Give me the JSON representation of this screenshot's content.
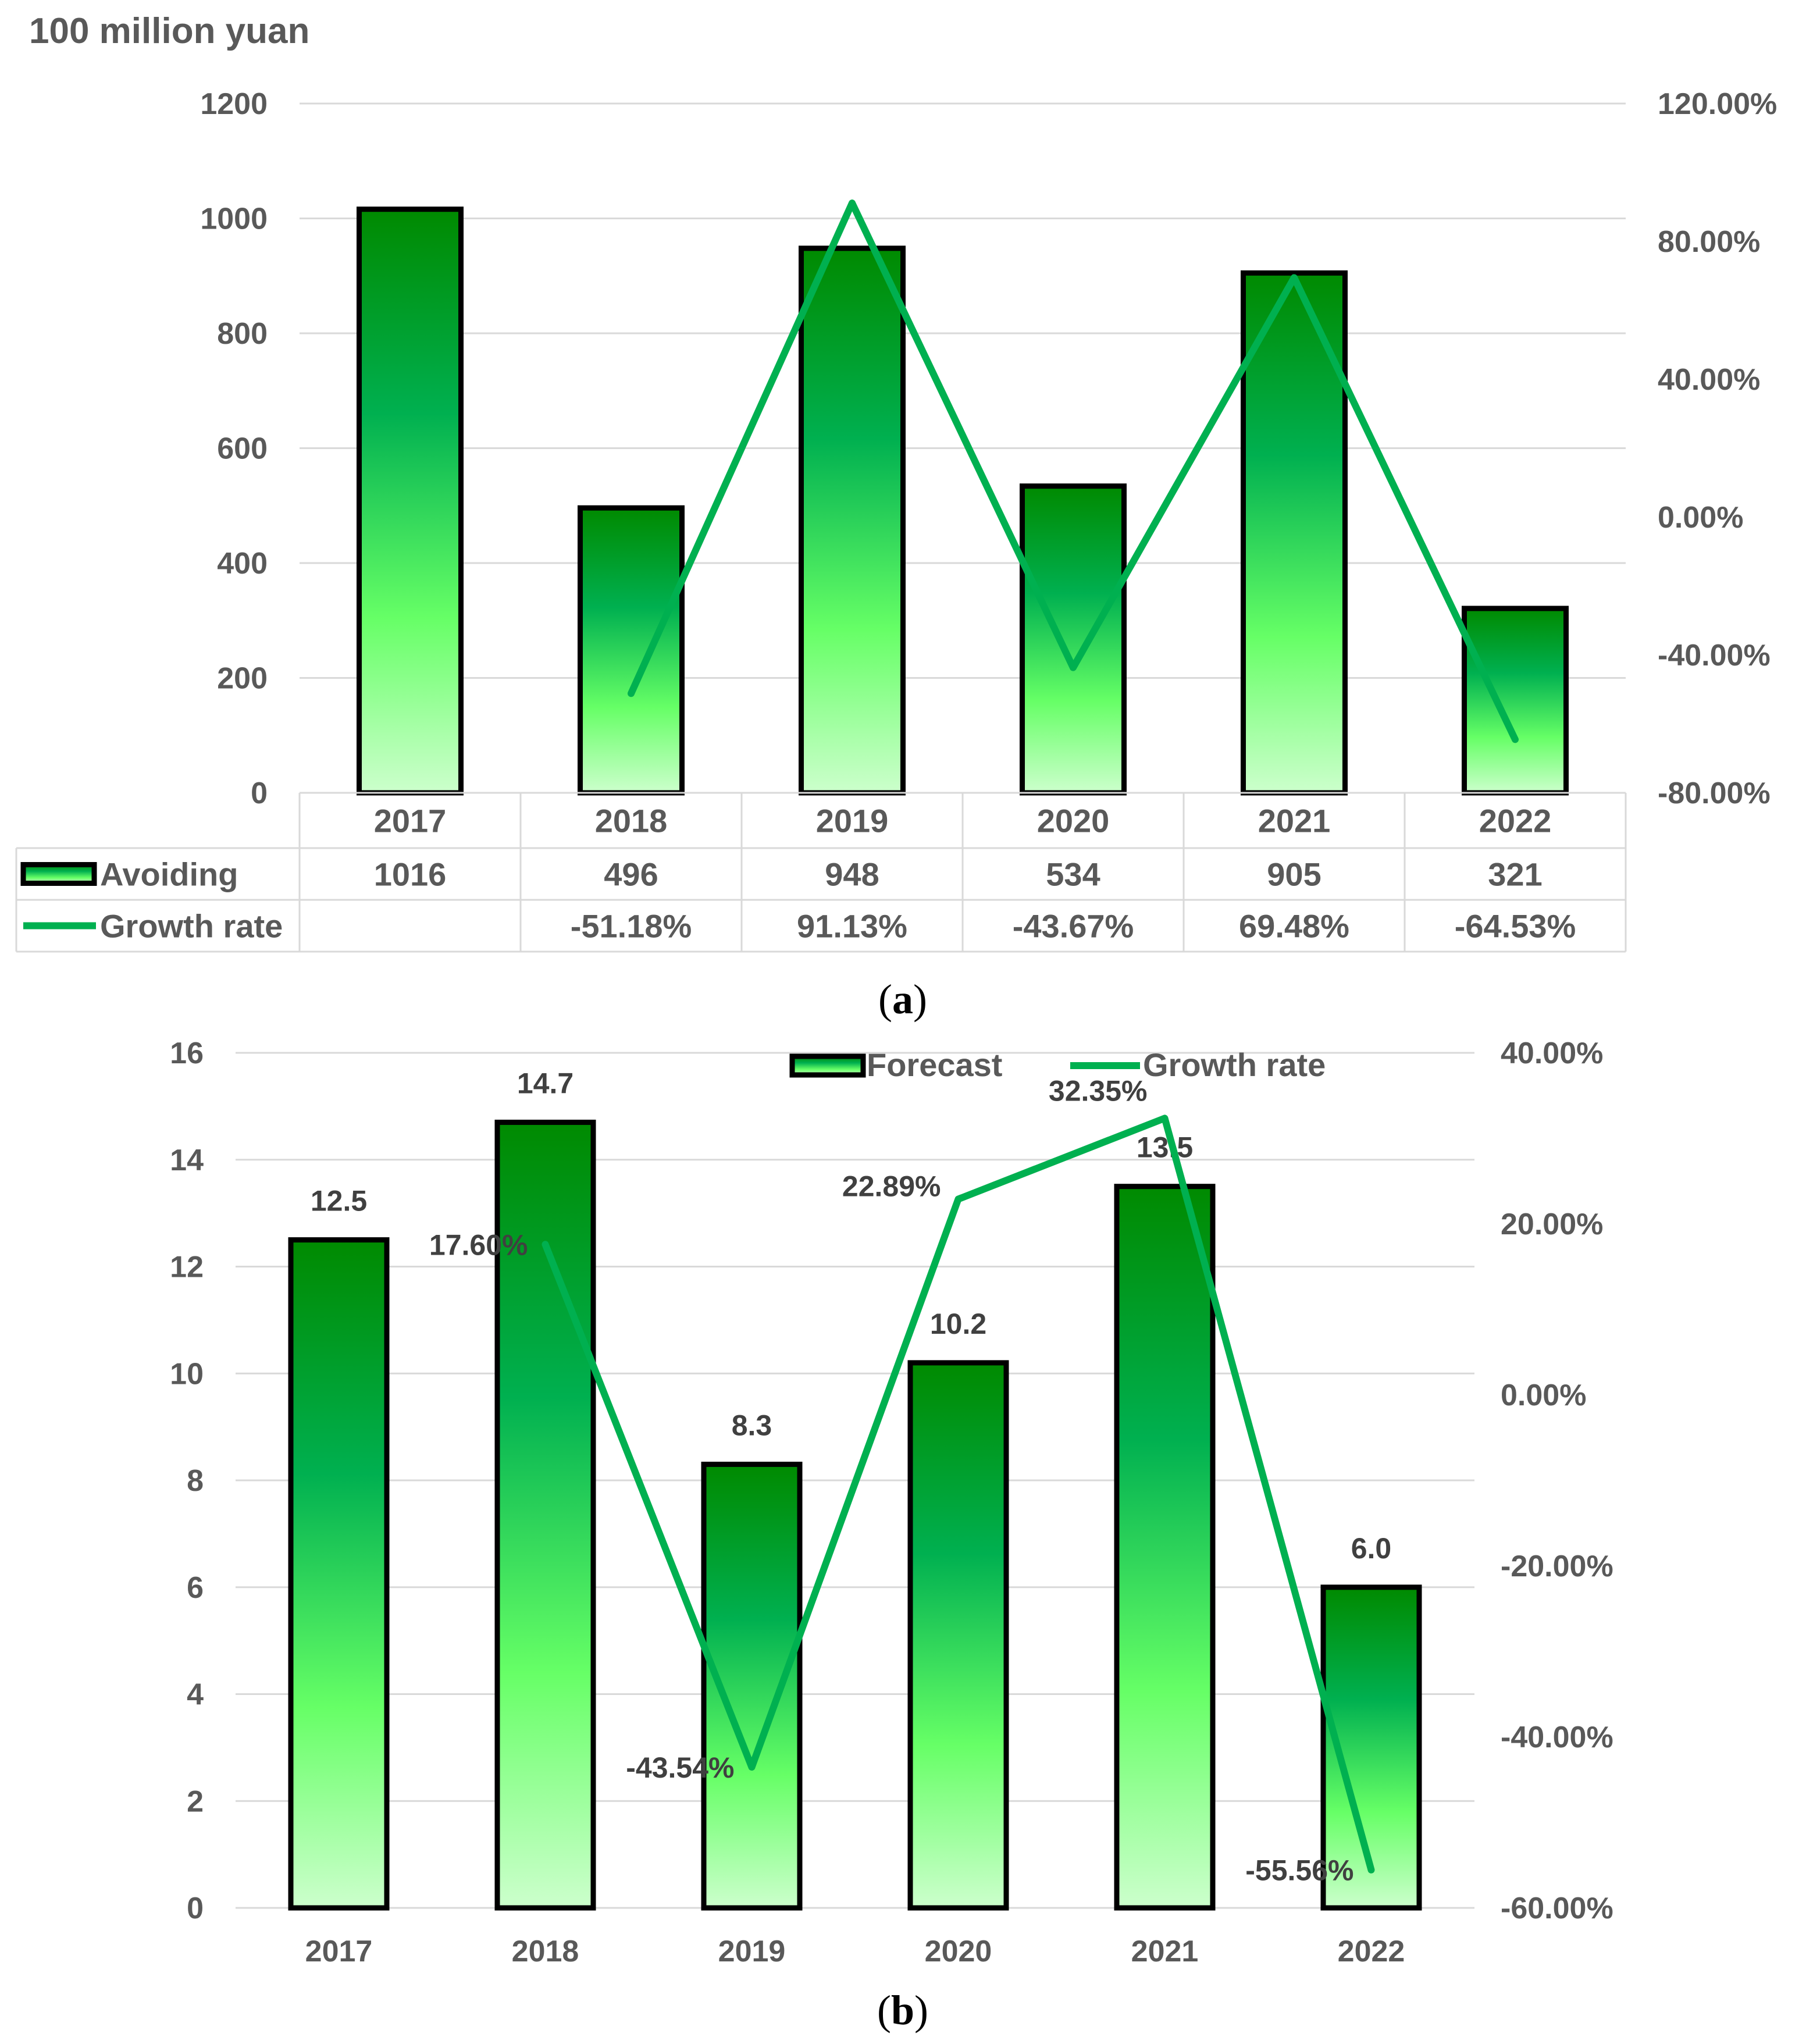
{
  "figure": {
    "caption_a_open": "(",
    "caption_a_letter": "a",
    "caption_a_close": ")",
    "caption_b_open": "(",
    "caption_b_letter": "b",
    "caption_b_close": ")"
  },
  "colors": {
    "bar_top": "#008a00",
    "bar_mid": "#00b050",
    "bar_low": "#66ff66",
    "bar_bottom": "#ccffcc",
    "bar_border": "#000000",
    "line": "#00b050",
    "grid": "#d9d9d9",
    "text": "#595959"
  },
  "chart_data": [
    {
      "type": "bar",
      "title": "",
      "unit_label": "100 million yuan",
      "categories": [
        "2017",
        "2018",
        "2019",
        "2020",
        "2021",
        "2022"
      ],
      "ylim": [
        0,
        1200
      ],
      "y_ticks": [
        "0",
        "200",
        "400",
        "600",
        "800",
        "1000",
        "1200"
      ],
      "y2lim": [
        -0.8,
        1.2
      ],
      "y2_ticks": [
        "-80.00%",
        "-40.00%",
        "0.00%",
        "40.00%",
        "80.00%",
        "120.00%"
      ],
      "series": [
        {
          "name": "Avoiding",
          "kind": "bar",
          "values": [
            1016,
            496,
            948,
            534,
            905,
            321
          ],
          "labels": [
            "1016",
            "496",
            "948",
            "534",
            "905",
            "321"
          ]
        },
        {
          "name": "Growth rate",
          "kind": "line",
          "axis": "secondary",
          "values": [
            null,
            -0.5118,
            0.9113,
            -0.4367,
            0.6948,
            -0.6453
          ],
          "labels": [
            "",
            "-51.18%",
            "91.13%",
            "-43.67%",
            "69.48%",
            "-64.53%"
          ]
        }
      ],
      "legend": "data table below chart"
    },
    {
      "type": "bar",
      "title": "",
      "categories": [
        "2017",
        "2018",
        "2019",
        "2020",
        "2021",
        "2022"
      ],
      "ylim": [
        0,
        16
      ],
      "y_ticks": [
        "0",
        "2",
        "4",
        "6",
        "8",
        "10",
        "12",
        "14",
        "16"
      ],
      "y2lim": [
        -0.6,
        0.4
      ],
      "y2_ticks": [
        "-60.00%",
        "-40.00%",
        "-20.00%",
        "0.00%",
        "20.00%",
        "40.00%"
      ],
      "series": [
        {
          "name": "Forecast",
          "kind": "bar",
          "values": [
            12.5,
            14.7,
            8.3,
            10.2,
            13.5,
            6.0
          ],
          "labels": [
            "12.5",
            "14.7",
            "8.3",
            "10.2",
            "13.5",
            "6.0"
          ]
        },
        {
          "name": "Growth rate",
          "kind": "line",
          "axis": "secondary",
          "values": [
            null,
            0.176,
            -0.4354,
            0.2289,
            0.3235,
            -0.5556
          ],
          "labels": [
            "",
            "17.60%",
            "-43.54%",
            "22.89%",
            "32.35%",
            "-55.56%"
          ]
        }
      ],
      "legend": "top-center"
    }
  ]
}
